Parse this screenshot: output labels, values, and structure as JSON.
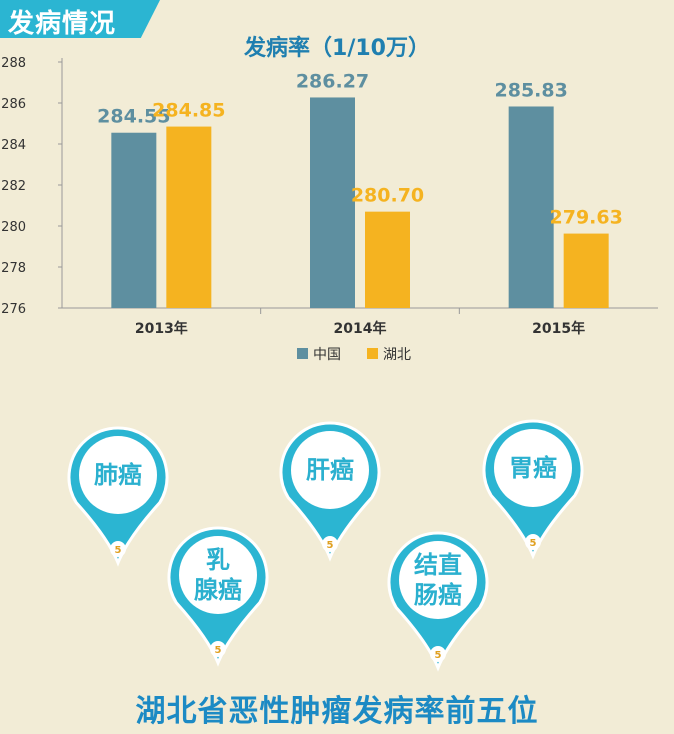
{
  "header": {
    "title": "发病情况"
  },
  "chart_data": {
    "type": "bar",
    "title": "发病率（1/10万）",
    "categories": [
      "2013年",
      "2014年",
      "2015年"
    ],
    "series": [
      {
        "name": "中国",
        "values": [
          284.55,
          286.27,
          285.83
        ],
        "labels": [
          "284.55",
          "286.27",
          "285.83"
        ],
        "color": "#5e8fa0"
      },
      {
        "name": "湖北",
        "values": [
          284.85,
          280.7,
          279.63
        ],
        "labels": [
          "284.85",
          "280.70",
          "279.63"
        ],
        "color": "#f5b320"
      }
    ],
    "ylim": [
      276,
      288
    ],
    "yticks": [
      276,
      278,
      280,
      282,
      284,
      286,
      288
    ],
    "grid": false,
    "legend": "bottom-center"
  },
  "pins": {
    "color": "#2bb5d2",
    "items": [
      {
        "label_lines": [
          "肺癌"
        ],
        "rank": "5"
      },
      {
        "label_lines": [
          "乳",
          "腺癌"
        ],
        "rank": "5"
      },
      {
        "label_lines": [
          "肝癌"
        ],
        "rank": "5"
      },
      {
        "label_lines": [
          "结直",
          "肠癌"
        ],
        "rank": "5"
      },
      {
        "label_lines": [
          "胃癌"
        ],
        "rank": "5"
      }
    ]
  },
  "footer": {
    "title": "湖北省恶性肿瘤发病率前五位"
  }
}
